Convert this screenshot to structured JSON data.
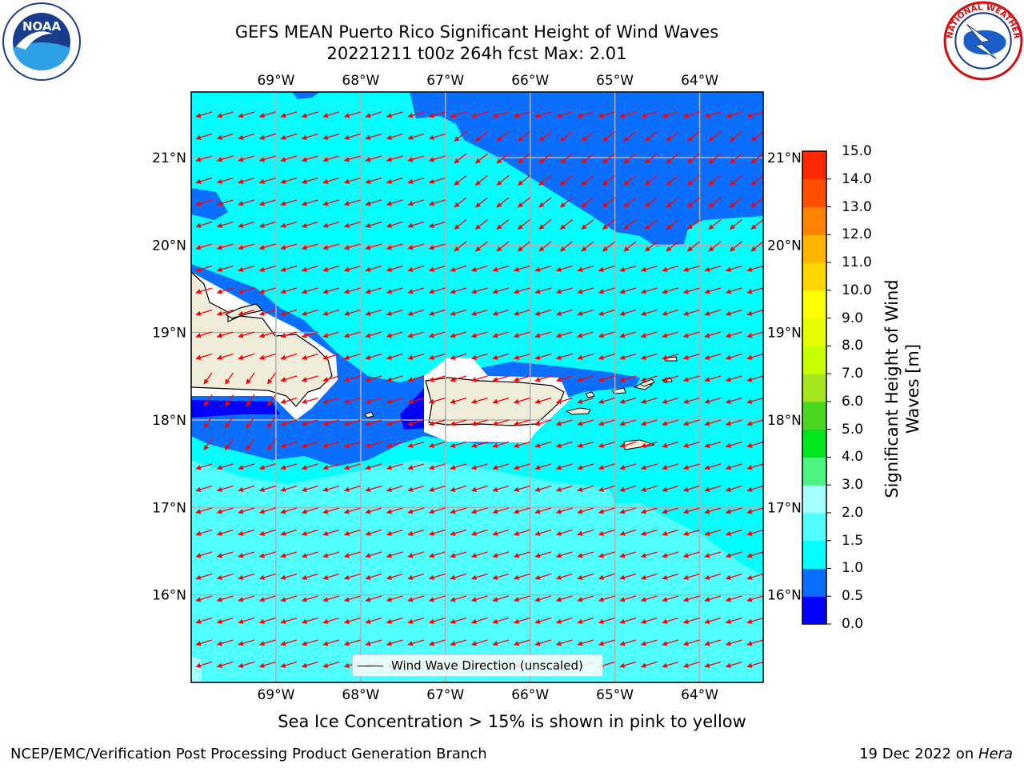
{
  "header": {
    "title_line1": "GEFS MEAN Puerto Rico Significant Height of Wind Waves",
    "title_line2": "20221211 t00z 264h fcst   Max: 2.01"
  },
  "map": {
    "lon_labels": [
      "69°W",
      "68°W",
      "67°W",
      "66°W",
      "65°W",
      "64°W"
    ],
    "lon_values": [
      -69,
      -68,
      -67,
      -66,
      -65,
      -64
    ],
    "lat_labels": [
      "21°N",
      "20°N",
      "19°N",
      "18°N",
      "17°N",
      "16°N"
    ],
    "lat_values": [
      21,
      20,
      19,
      18,
      17,
      16
    ],
    "lon_range": [
      -70,
      -63.25
    ],
    "lat_range": [
      15.0,
      21.75
    ],
    "arrow_direction": "toward west-southwest",
    "legend_label": "Wind Wave Direction (unscaled)",
    "arrow_color": "#ff0000",
    "land_color": "#efedd9"
  },
  "colorbar": {
    "title": "Significant Height of Wind Waves [m]",
    "tick_labels": [
      "0.0",
      "0.5",
      "1.0",
      "1.5",
      "2.0",
      "3.0",
      "4.0",
      "5.0",
      "6.0",
      "7.0",
      "8.0",
      "9.0",
      "10.0",
      "11.0",
      "12.0",
      "13.0",
      "14.0",
      "15.0"
    ],
    "colors": [
      "#0000ff",
      "#0a6eff",
      "#00ffff",
      "#50ffff",
      "#a5ffff",
      "#4cf580",
      "#00e61e",
      "#4bd71e",
      "#a5e61e",
      "#c8ff00",
      "#e6ff00",
      "#ffff00",
      "#ffd700",
      "#ffb400",
      "#ff8200",
      "#ff5000",
      "#ff2800",
      "#ff0000"
    ]
  },
  "footer": {
    "ice_note": "Sea Ice Concentration > 15% is shown in pink to yellow",
    "branch": "NCEP/EMC/Verification Post Processing Product Generation Branch",
    "date_prefix": "19 Dec 2022 on ",
    "machine": "Hera"
  },
  "logos": {
    "noaa_text": "NOAA",
    "nws_text": "NATIONAL WEATHER SERVICE"
  }
}
